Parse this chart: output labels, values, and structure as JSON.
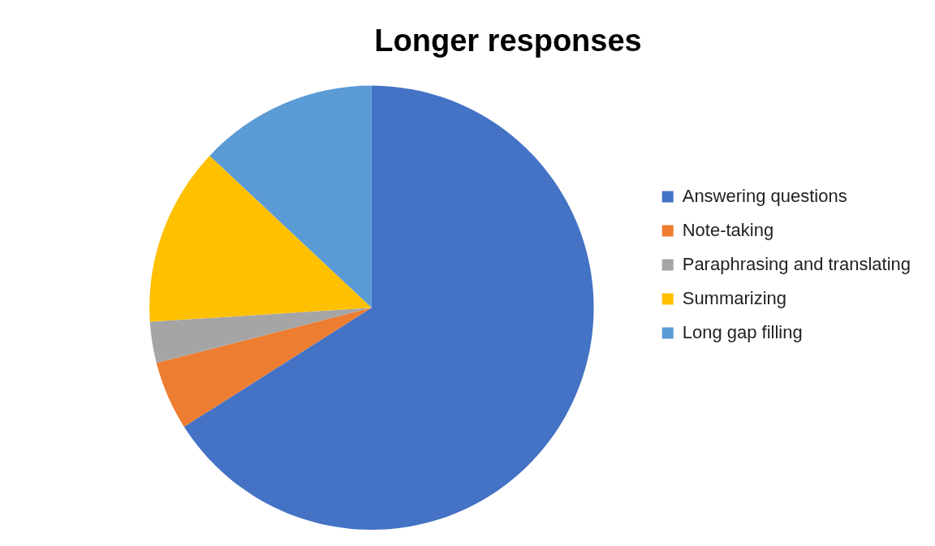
{
  "chart_data": {
    "type": "pie",
    "title": "Longer responses",
    "categories": [
      "Answering questions",
      "Note-taking",
      "Paraphrasing and translating",
      "Summarizing",
      "Long gap filling"
    ],
    "values": [
      66,
      5,
      3,
      13,
      13
    ],
    "colors": [
      "#4472c4",
      "#ed7d31",
      "#a5a5a5",
      "#ffc000",
      "#5b9bd5"
    ],
    "legend": "right"
  }
}
